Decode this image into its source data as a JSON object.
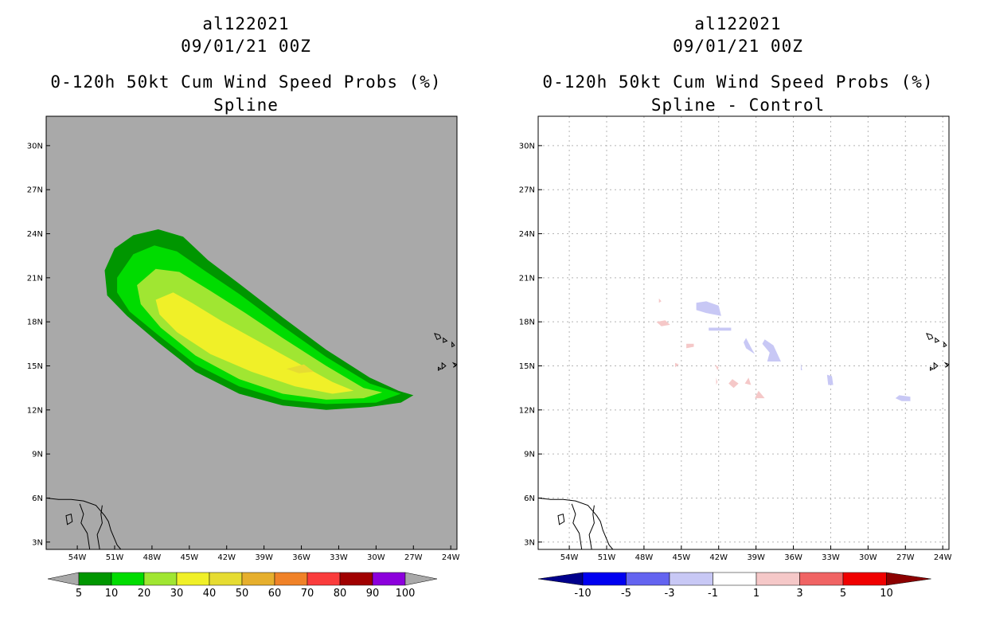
{
  "panels": [
    {
      "storm_id": "al122021",
      "datetime": "09/01/21 00Z",
      "title": "0-120h 50kt Cum Wind Speed Probs (%)",
      "subtitle": "Spline"
    },
    {
      "storm_id": "al122021",
      "datetime": "09/01/21 00Z",
      "title": "0-120h 50kt Cum Wind Speed Probs (%)",
      "subtitle": "Spline - Control"
    }
  ],
  "axes": {
    "lat_ticks": [
      "30N",
      "27N",
      "24N",
      "21N",
      "18N",
      "15N",
      "12N",
      "9N",
      "6N",
      "3N"
    ],
    "lat_values": [
      30,
      27,
      24,
      21,
      18,
      15,
      12,
      9,
      6,
      3
    ],
    "lon_ticks": [
      "54W",
      "51W",
      "48W",
      "45W",
      "42W",
      "39W",
      "36W",
      "33W",
      "30W",
      "27W",
      "24W"
    ],
    "lon_values": [
      54,
      51,
      48,
      45,
      42,
      39,
      36,
      33,
      30,
      27,
      24
    ],
    "xlim_west": [
      56.5,
      23.5
    ],
    "ylim_north": [
      2.5,
      32
    ]
  },
  "chart_data": [
    {
      "type": "heatmap",
      "title": "0-120h 50kt Cum Wind Speed Probs (%)",
      "subtitle": "Spline",
      "colorbar_levels": [
        "5",
        "10",
        "20",
        "30",
        "40",
        "50",
        "60",
        "70",
        "80",
        "90",
        "100"
      ],
      "colorbar_colors": [
        "#009600",
        "#00dc00",
        "#a0e632",
        "#f0f028",
        "#e6dc32",
        "#e6af2d",
        "#f08228",
        "#fa3c3c",
        "#a00000",
        "#8c00dc"
      ],
      "background_color": "#a9a9a9",
      "probability_contours": [
        {
          "level": 5,
          "color": "#009600",
          "lonlat": [
            [
              51.8,
              21.5
            ],
            [
              51,
              23
            ],
            [
              49.5,
              23.9
            ],
            [
              47.5,
              24.3
            ],
            [
              45.5,
              23.8
            ],
            [
              43.5,
              22.2
            ],
            [
              41,
              20.6
            ],
            [
              37.5,
              18.3
            ],
            [
              34,
              16.1
            ],
            [
              30.5,
              14.2
            ],
            [
              28.2,
              13.3
            ],
            [
              27,
              13
            ],
            [
              28,
              12.5
            ],
            [
              30.5,
              12.2
            ],
            [
              34,
              12
            ],
            [
              37.5,
              12.3
            ],
            [
              41,
              13.1
            ],
            [
              44.5,
              14.6
            ],
            [
              47.5,
              16.6
            ],
            [
              50,
              18.4
            ],
            [
              51.6,
              19.8
            ]
          ]
        },
        {
          "level": 10,
          "color": "#00dc00",
          "lonlat": [
            [
              50.8,
              21
            ],
            [
              49.5,
              22.6
            ],
            [
              47.8,
              23.2
            ],
            [
              46,
              22.8
            ],
            [
              43.8,
              21.5
            ],
            [
              41,
              19.9
            ],
            [
              37.5,
              17.7
            ],
            [
              34,
              15.6
            ],
            [
              30.5,
              13.8
            ],
            [
              28,
              13.1
            ],
            [
              30,
              12.5
            ],
            [
              34,
              12.4
            ],
            [
              37.5,
              12.7
            ],
            [
              41,
              13.6
            ],
            [
              44.5,
              15.1
            ],
            [
              47.5,
              17.1
            ],
            [
              49.8,
              18.7
            ],
            [
              50.8,
              20
            ]
          ]
        },
        {
          "level": 20,
          "color": "#a0e632",
          "lonlat": [
            [
              49.2,
              20.5
            ],
            [
              47.7,
              21.6
            ],
            [
              45.8,
              21.4
            ],
            [
              43.3,
              20.1
            ],
            [
              40.5,
              18.6
            ],
            [
              37.5,
              16.9
            ],
            [
              34,
              15
            ],
            [
              31,
              13.5
            ],
            [
              29.5,
              13.2
            ],
            [
              31,
              12.8
            ],
            [
              34,
              12.7
            ],
            [
              37.5,
              13.1
            ],
            [
              41,
              14.1
            ],
            [
              44.5,
              15.7
            ],
            [
              47.3,
              17.6
            ],
            [
              48.9,
              19.2
            ]
          ]
        },
        {
          "level": 30,
          "color": "#f0f028",
          "lonlat": [
            [
              47.7,
              19.5
            ],
            [
              46.3,
              20
            ],
            [
              44.8,
              19.3
            ],
            [
              42.5,
              18.1
            ],
            [
              39.5,
              16.7
            ],
            [
              36.5,
              15.3
            ],
            [
              33.5,
              13.9
            ],
            [
              31.8,
              13.3
            ],
            [
              33.5,
              13.1
            ],
            [
              36.5,
              13.6
            ],
            [
              40,
              14.6
            ],
            [
              43.3,
              15.8
            ],
            [
              46,
              17.3
            ],
            [
              47.4,
              18.5
            ]
          ]
        },
        {
          "level": 40,
          "color": "#e6dc32",
          "lonlat": [
            [
              37.2,
              14.8
            ],
            [
              35.8,
              15.1
            ],
            [
              35,
              14.6
            ],
            [
              36.2,
              14.5
            ]
          ]
        }
      ],
      "land_labels": []
    },
    {
      "type": "heatmap",
      "title": "0-120h 50kt Cum Wind Speed Probs (%)",
      "subtitle": "Spline - Control",
      "colorbar_levels": [
        "-10",
        "-5",
        "-3",
        "-1",
        "1",
        "3",
        "5",
        "10"
      ],
      "colorbar_colors": [
        "#0000f0",
        "#6464f0",
        "#c8c8f5",
        "#ffffff",
        "#f5c8c8",
        "#f06464",
        "#f00000"
      ],
      "colorbar_end_colors": [
        "#00008c",
        "#8c0000"
      ],
      "background_color": "#ffffff",
      "difference_patches": [
        {
          "value_range": "-3 to -1",
          "color": "#c8c8f5",
          "lonlat": [
            [
              43.8,
              19.3
            ],
            [
              43,
              19.4
            ],
            [
              42,
              19.1
            ],
            [
              41.8,
              18.4
            ],
            [
              43,
              18.6
            ],
            [
              43.8,
              18.8
            ]
          ]
        },
        {
          "value_range": "-3 to -1",
          "color": "#c8c8f5",
          "lonlat": [
            [
              42.8,
              17.6
            ],
            [
              41,
              17.6
            ],
            [
              41,
              17.4
            ],
            [
              42.8,
              17.4
            ]
          ]
        },
        {
          "value_range": "-3 to -1",
          "color": "#c8c8f5",
          "lonlat": [
            [
              39.8,
              16.9
            ],
            [
              39.3,
              16.1
            ],
            [
              39.1,
              15.8
            ],
            [
              39.8,
              16.2
            ],
            [
              40,
              16.6
            ]
          ]
        },
        {
          "value_range": "-3 to -1",
          "color": "#c8c8f5",
          "lonlat": [
            [
              38.3,
              16.8
            ],
            [
              37.6,
              16.4
            ],
            [
              37,
              15.3
            ],
            [
              38.1,
              15.3
            ],
            [
              37.9,
              15.9
            ],
            [
              38.5,
              16.5
            ]
          ]
        },
        {
          "value_range": "-3 to -1",
          "color": "#c8c8f5",
          "lonlat": [
            [
              33.3,
              14.4
            ],
            [
              32.9,
              14.3
            ],
            [
              32.8,
              13.7
            ],
            [
              33.2,
              13.7
            ]
          ]
        },
        {
          "value_range": "-3 to -1",
          "color": "#c8c8f5",
          "lonlat": [
            [
              27.5,
              13
            ],
            [
              26.6,
              12.9
            ],
            [
              26.6,
              12.6
            ],
            [
              27.3,
              12.6
            ],
            [
              27.8,
              12.8
            ]
          ]
        },
        {
          "value_range": "-3 to -1",
          "color": "#c8c8f5",
          "lonlat": [
            [
              35.4,
              15.2
            ],
            [
              35.3,
              14.7
            ],
            [
              35.4,
              14.7
            ]
          ]
        },
        {
          "value_range": "1 to 3",
          "color": "#f5c8c8",
          "lonlat": [
            [
              47,
              18
            ],
            [
              46.3,
              18.1
            ],
            [
              45.9,
              17.8
            ],
            [
              46.6,
              17.7
            ]
          ]
        },
        {
          "value_range": "1 to 3",
          "color": "#f5c8c8",
          "lonlat": [
            [
              44.6,
              16.5
            ],
            [
              44,
              16.5
            ],
            [
              44,
              16.3
            ],
            [
              44.6,
              16.2
            ]
          ]
        },
        {
          "value_range": "1 to 3",
          "color": "#f5c8c8",
          "lonlat": [
            [
              42.3,
              15.1
            ],
            [
              42,
              14.9
            ],
            [
              42.1,
              14.7
            ]
          ]
        },
        {
          "value_range": "1 to 3",
          "color": "#f5c8c8",
          "lonlat": [
            [
              42.2,
              14.2
            ],
            [
              42.1,
              13.9
            ],
            [
              42.2,
              13.7
            ]
          ]
        },
        {
          "value_range": "1 to 3",
          "color": "#f5c8c8",
          "lonlat": [
            [
              40.9,
              14.1
            ],
            [
              40.4,
              13.8
            ],
            [
              40.8,
              13.5
            ],
            [
              41.2,
              13.8
            ]
          ]
        },
        {
          "value_range": "1 to 3",
          "color": "#f5c8c8",
          "lonlat": [
            [
              39.6,
              14.2
            ],
            [
              39.4,
              13.7
            ],
            [
              39.9,
              13.8
            ]
          ]
        },
        {
          "value_range": "1 to 3",
          "color": "#f5c8c8",
          "lonlat": [
            [
              38.8,
              13.3
            ],
            [
              38.3,
              12.8
            ],
            [
              39.1,
              12.8
            ]
          ]
        },
        {
          "value_range": "1 to 3",
          "color": "#f5c8c8",
          "lonlat": [
            [
              45.5,
              15.2
            ],
            [
              45.2,
              15.1
            ],
            [
              45.5,
              14.9
            ]
          ]
        },
        {
          "value_range": "1 to 3",
          "color": "#f5c8c8",
          "lonlat": [
            [
              46.8,
              19.6
            ],
            [
              46.6,
              19.4
            ],
            [
              46.8,
              19.3
            ]
          ]
        }
      ]
    }
  ],
  "coastline": {
    "color": "#000000",
    "south_america": [
      [
        56.5,
        6
      ],
      [
        55.5,
        5.9
      ],
      [
        54.5,
        5.9
      ],
      [
        53.5,
        5.8
      ],
      [
        52.5,
        5.5
      ],
      [
        51.8,
        4.8
      ],
      [
        51.5,
        4.4
      ],
      [
        51.3,
        3.8
      ],
      [
        51,
        3.2
      ],
      [
        50.8,
        2.8
      ],
      [
        50.5,
        2.5
      ]
    ],
    "inland_river": [
      [
        53.8,
        5.6
      ],
      [
        53.5,
        4.9
      ],
      [
        53.7,
        4.3
      ],
      [
        53.2,
        3.6
      ],
      [
        53,
        2.5
      ]
    ],
    "inland_border": [
      [
        52,
        5.5
      ],
      [
        52.1,
        4.9
      ],
      [
        52,
        4.3
      ],
      [
        52.4,
        3.5
      ],
      [
        52.2,
        2.5
      ]
    ],
    "lake": [
      [
        54.9,
        4.8
      ],
      [
        54.5,
        4.9
      ],
      [
        54.4,
        4.4
      ],
      [
        54.8,
        4.2
      ]
    ],
    "cape_verde": [
      [
        [
          25.3,
          17.2
        ],
        [
          24.9,
          17.1
        ],
        [
          24.8,
          16.9
        ],
        [
          25.1,
          16.8
        ]
      ],
      [
        [
          24.6,
          16.9
        ],
        [
          24.3,
          16.7
        ],
        [
          24.6,
          16.6
        ]
      ],
      [
        [
          23.9,
          16.6
        ],
        [
          23.7,
          16.4
        ],
        [
          23.9,
          16.3
        ]
      ],
      [
        [
          24.7,
          15.2
        ],
        [
          24.4,
          15
        ],
        [
          24.7,
          14.8
        ]
      ],
      [
        [
          23.8,
          15.2
        ],
        [
          23.6,
          15
        ],
        [
          23.8,
          14.9
        ],
        [
          23.5,
          15.1
        ]
      ],
      [
        [
          25,
          14.9
        ],
        [
          24.8,
          14.8
        ],
        [
          25,
          14.7
        ]
      ]
    ]
  }
}
